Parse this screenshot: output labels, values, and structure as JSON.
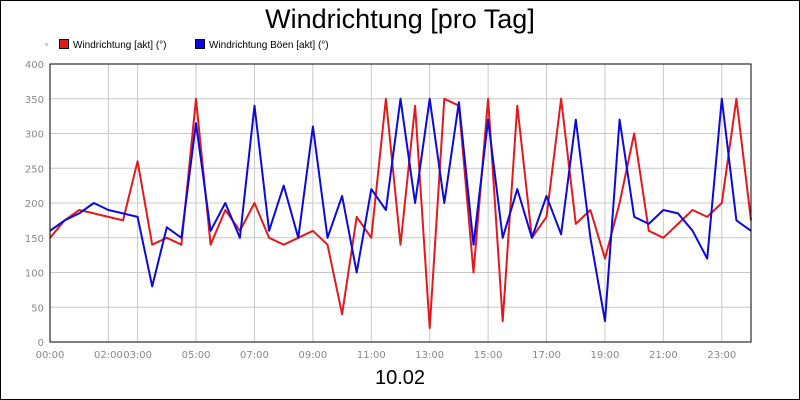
{
  "chart_data": {
    "type": "line",
    "title": "Windrichtung [pro Tag]",
    "xlabel": "10.02",
    "ylabel": "",
    "ylim": [
      0,
      400
    ],
    "yticks": [
      "0",
      "50",
      "100",
      "150",
      "200",
      "250",
      "300",
      "350",
      "400"
    ],
    "xlim": [
      "00:00",
      "24:00"
    ],
    "xticks": [
      "00:00",
      "02:00",
      "03:00",
      "05:00",
      "07:00",
      "09:00",
      "11:00",
      "13:00",
      "15:00",
      "17:00",
      "19:00",
      "21:00",
      "23:00"
    ],
    "grid": true,
    "legend_position": "top-left",
    "x": [
      "00:00",
      "00:30",
      "01:00",
      "01:30",
      "02:00",
      "02:30",
      "03:00",
      "03:30",
      "04:00",
      "04:30",
      "05:00",
      "05:30",
      "06:00",
      "06:30",
      "07:00",
      "07:30",
      "08:00",
      "08:30",
      "09:00",
      "09:30",
      "10:00",
      "10:30",
      "11:00",
      "11:30",
      "12:00",
      "12:30",
      "13:00",
      "13:30",
      "14:00",
      "14:30",
      "15:00",
      "15:30",
      "16:00",
      "16:30",
      "17:00",
      "17:30",
      "18:00",
      "18:30",
      "19:00",
      "19:30",
      "20:00",
      "20:30",
      "21:00",
      "21:30",
      "22:00",
      "22:30",
      "23:00",
      "23:30",
      "24:00"
    ],
    "series": [
      {
        "name": "Windrichtung [akt] (°)",
        "color": "#e31a1c",
        "values": [
          150,
          175,
          190,
          185,
          180,
          175,
          260,
          140,
          150,
          140,
          350,
          140,
          190,
          160,
          200,
          150,
          140,
          150,
          160,
          140,
          40,
          180,
          150,
          350,
          140,
          340,
          20,
          350,
          340,
          100,
          350,
          30,
          340,
          150,
          180,
          350,
          170,
          190,
          120,
          200,
          300,
          160,
          150,
          170,
          190,
          180,
          200,
          350,
          175
        ]
      },
      {
        "name": "Windrichtung Böen [akt] (°)",
        "color": "#0a0adc",
        "values": [
          160,
          175,
          185,
          200,
          190,
          185,
          180,
          80,
          165,
          150,
          315,
          160,
          200,
          150,
          340,
          160,
          225,
          150,
          310,
          150,
          210,
          100,
          220,
          190,
          350,
          200,
          350,
          200,
          345,
          140,
          320,
          150,
          220,
          150,
          210,
          155,
          320,
          150,
          30,
          320,
          180,
          170,
          190,
          185,
          160,
          120,
          350,
          175,
          160
        ]
      }
    ]
  }
}
